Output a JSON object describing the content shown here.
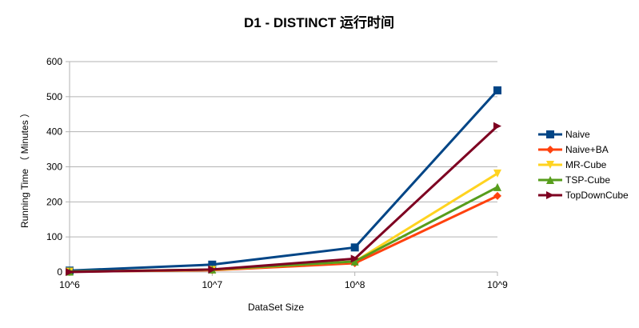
{
  "chart_data": {
    "type": "line",
    "title": "D1 - DISTINCT  运行时间",
    "xlabel": "DataSet Size",
    "ylabel": "Running Time （ Minutes ）",
    "categories": [
      "10^6",
      "10^7",
      "10^8",
      "10^9"
    ],
    "ylim": [
      0,
      600
    ],
    "yticks": [
      0,
      100,
      200,
      300,
      400,
      500,
      600
    ],
    "grid": true,
    "legend": "right",
    "series": [
      {
        "name": "Naive",
        "color": "#004586",
        "marker": "square",
        "values": [
          4,
          21,
          70,
          518
        ]
      },
      {
        "name": "Naive+BA",
        "color": "#ff420e",
        "marker": "diamond",
        "values": [
          1,
          5,
          25,
          217
        ]
      },
      {
        "name": "MR-Cube",
        "color": "#ffd320",
        "marker": "triangle-down",
        "values": [
          1,
          6,
          30,
          281
        ]
      },
      {
        "name": "TSP-Cube",
        "color": "#579d1c",
        "marker": "triangle-up",
        "values": [
          1,
          7,
          30,
          242
        ]
      },
      {
        "name": "TopDownCube",
        "color": "#7e0021",
        "marker": "triangle-right",
        "values": [
          0,
          7,
          38,
          416
        ]
      }
    ]
  }
}
